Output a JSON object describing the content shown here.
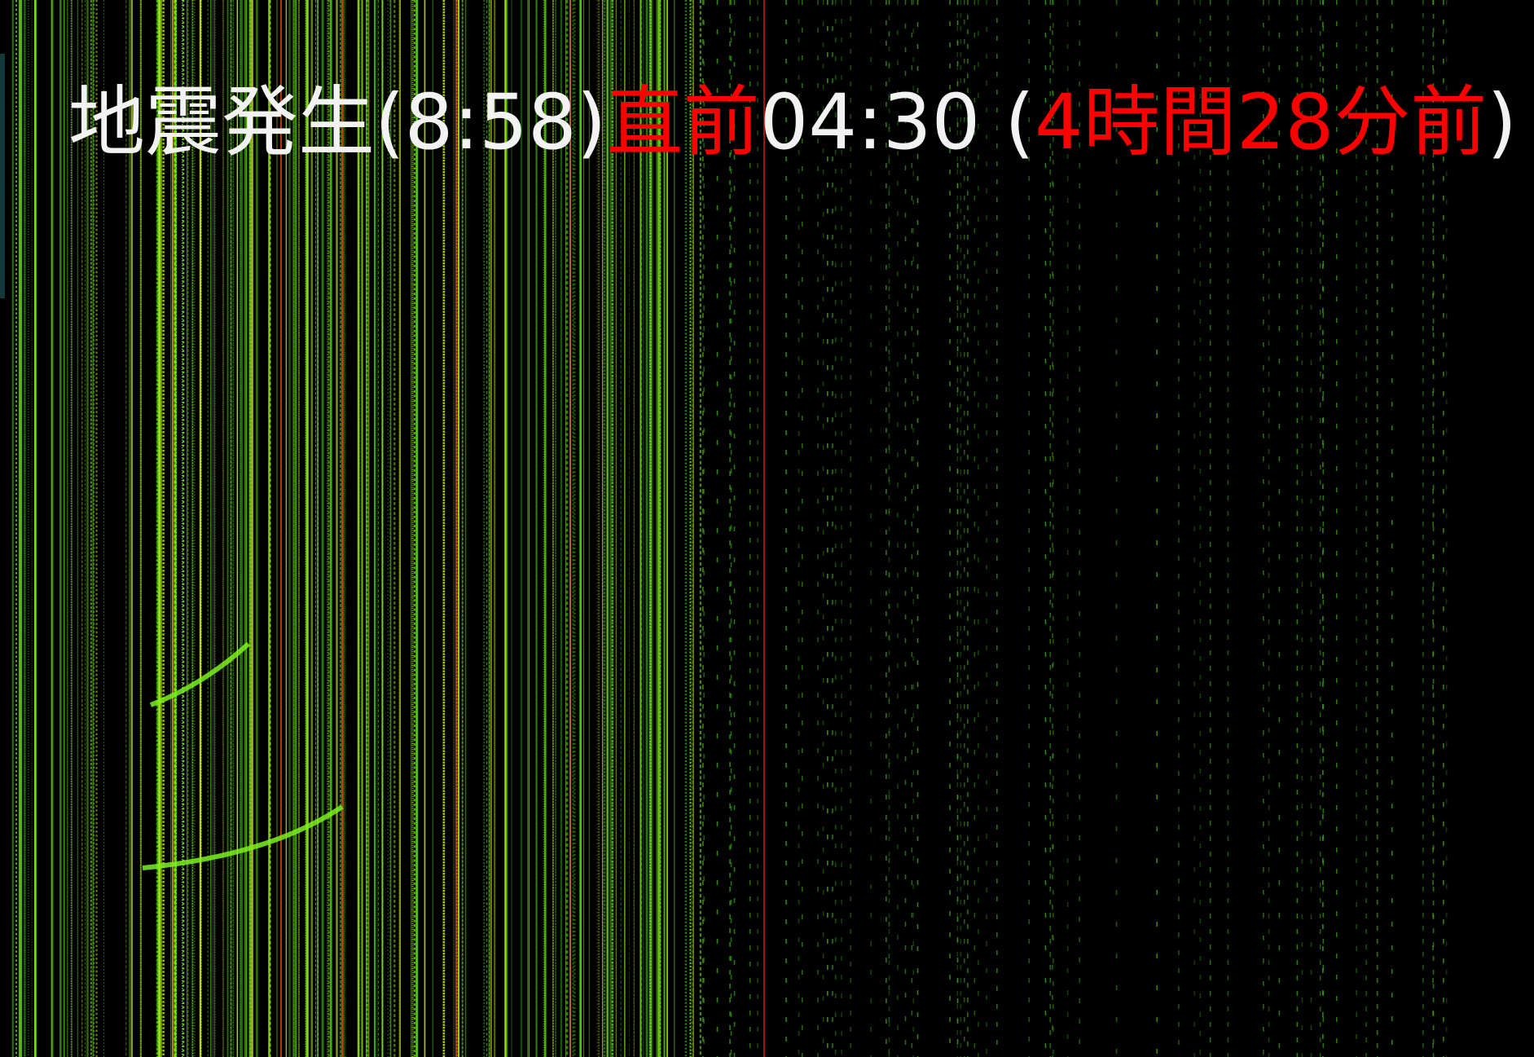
{
  "caption": {
    "segments": [
      {
        "text": "地震発生(8:58)",
        "color": "#f2f2f2"
      },
      {
        "text": "直前",
        "color": "#ff0000"
      },
      {
        "text": "04:30 (",
        "color": "#f2f2f2"
      },
      {
        "text": "4時間28分前",
        "color": "#ff0000"
      },
      {
        "text": ")",
        "color": "#f2f2f2"
      }
    ]
  }
}
